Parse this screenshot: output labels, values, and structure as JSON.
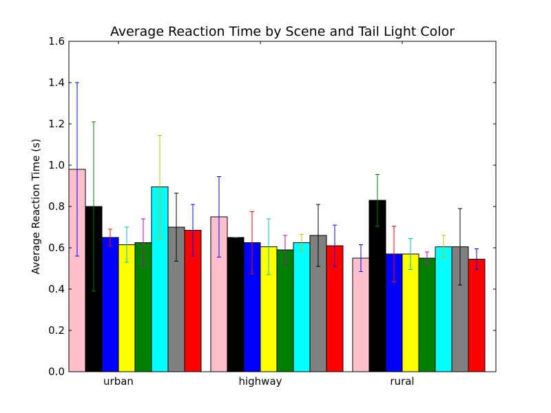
{
  "chart_data": {
    "type": "bar",
    "title": "Average Reaction Time by Scene and Tail Light Color",
    "xlabel": "",
    "ylabel": "Average Reaction Time (s)",
    "ylim": [
      0.0,
      1.6
    ],
    "yticks": [
      "0.0",
      "0.2",
      "0.4",
      "0.6",
      "0.8",
      "1.0",
      "1.2",
      "1.4",
      "1.6"
    ],
    "grid": false,
    "categories": [
      "urban",
      "highway",
      "rural"
    ],
    "series": [
      {
        "color": "#ffc0cb",
        "errcolor": "#0000ff",
        "values": [
          0.98,
          0.75,
          0.55
        ],
        "errors": [
          0.42,
          0.195,
          0.065
        ]
      },
      {
        "color": "#000000",
        "errcolor": "#008000",
        "values": [
          0.8,
          0.65,
          0.83
        ],
        "errors": [
          0.41,
          0.0,
          0.125
        ]
      },
      {
        "color": "#0000ff",
        "errcolor": "#ff0000",
        "values": [
          0.65,
          0.625,
          0.57
        ],
        "errors": [
          0.04,
          0.15,
          0.135
        ]
      },
      {
        "color": "#ffff00",
        "errcolor": "#00bfbf",
        "values": [
          0.615,
          0.605,
          0.57
        ],
        "errors": [
          0.085,
          0.135,
          0.075
        ]
      },
      {
        "color": "#008000",
        "errcolor": "#bf00bf",
        "values": [
          0.625,
          0.59,
          0.55
        ],
        "errors": [
          0.115,
          0.07,
          0.03
        ]
      },
      {
        "color": "#00ffff",
        "errcolor": "#bfbf00",
        "values": [
          0.895,
          0.625,
          0.605
        ],
        "errors": [
          0.25,
          0.04,
          0.055
        ]
      },
      {
        "color": "#808080",
        "errcolor": "#000000",
        "values": [
          0.7,
          0.66,
          0.605
        ],
        "errors": [
          0.165,
          0.15,
          0.185
        ]
      },
      {
        "color": "#ff0000",
        "errcolor": "#0000ff",
        "values": [
          0.685,
          0.61,
          0.545
        ],
        "errors": [
          0.125,
          0.1,
          0.05
        ]
      }
    ]
  }
}
